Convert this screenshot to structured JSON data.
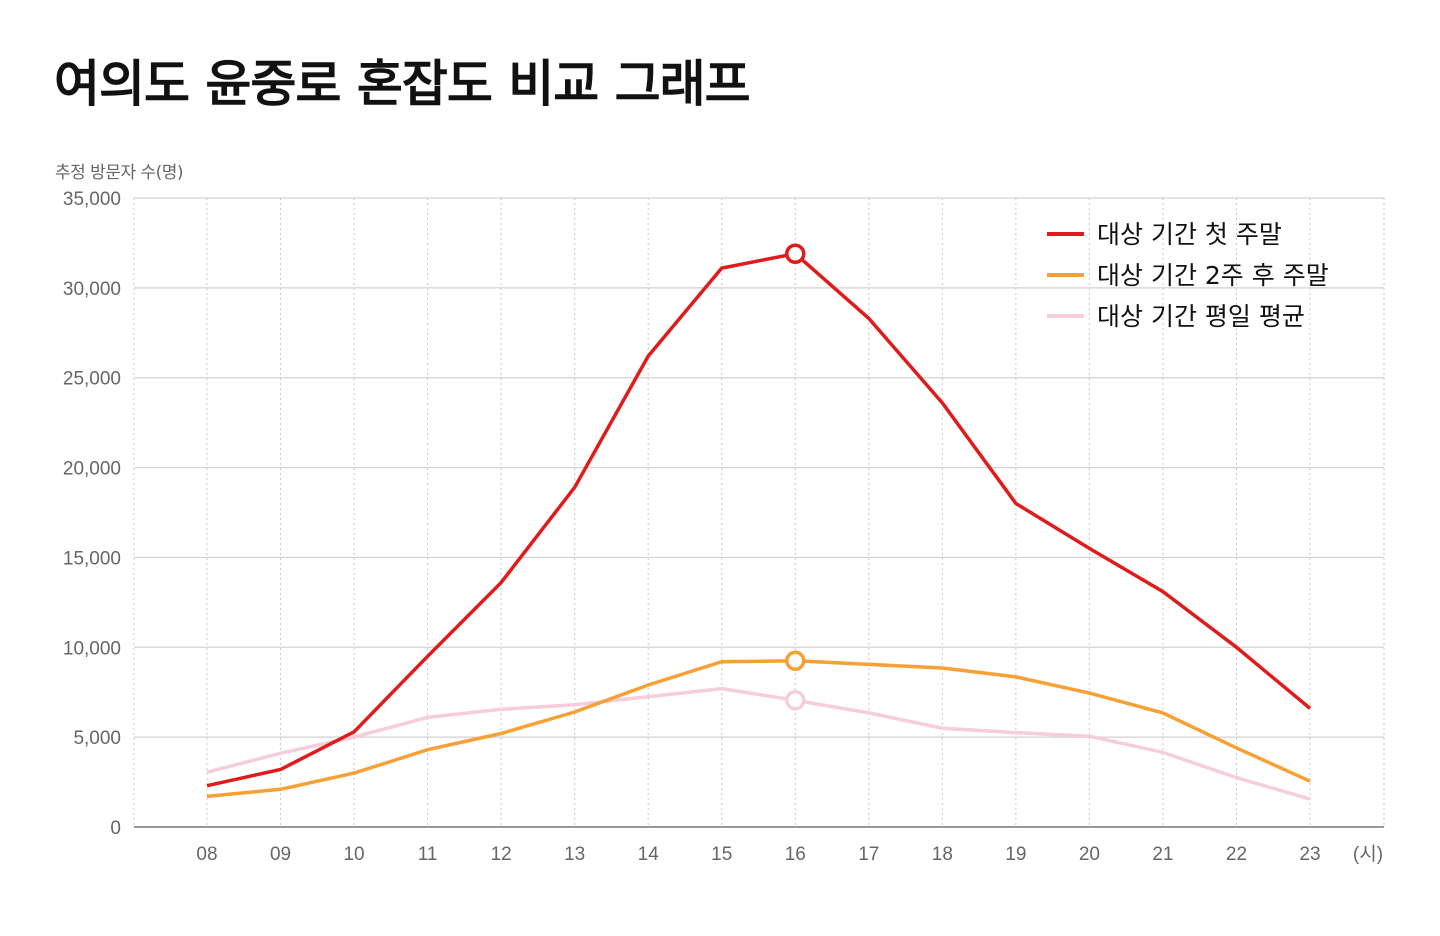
{
  "title": "여의도 윤중로 혼잡도 비교 그래프",
  "y_axis_label": "추정 방문자 수(명)",
  "x_axis_unit": "(시)",
  "chart_data": {
    "type": "line",
    "title": "여의도 윤중로 혼잡도 비교 그래프",
    "xlabel": "(시)",
    "ylabel": "추정 방문자 수(명)",
    "ylim": [
      0,
      35000
    ],
    "yticks": [
      0,
      5000,
      10000,
      15000,
      20000,
      25000,
      30000,
      35000
    ],
    "ytick_labels": [
      "0",
      "5,000",
      "10,000",
      "15,000",
      "20,000",
      "25,000",
      "30,000",
      "35,000"
    ],
    "categories": [
      "08",
      "09",
      "10",
      "11",
      "12",
      "13",
      "14",
      "15",
      "16",
      "17",
      "18",
      "19",
      "20",
      "21",
      "22",
      "23"
    ],
    "grid": {
      "horizontal": "solid",
      "vertical": "dotted"
    },
    "legend_position": "top-right",
    "highlight_category": "16",
    "series": [
      {
        "name": "대상 기간 첫 주말",
        "color": "#e01b1b",
        "values": [
          2300,
          3200,
          5300,
          9500,
          13600,
          18900,
          26200,
          31100,
          31900,
          28300,
          23600,
          18000,
          15500,
          13100,
          10000,
          6600
        ]
      },
      {
        "name": "대상 기간 2주 후 주말",
        "color": "#f7a035",
        "values": [
          1700,
          2100,
          3000,
          4300,
          5200,
          6400,
          7900,
          9200,
          9250,
          9050,
          8850,
          8350,
          7450,
          6350,
          4400,
          2550
        ]
      },
      {
        "name": "대상 기간 평일 평균",
        "color": "#f5cddb",
        "values": [
          3050,
          4100,
          5000,
          6100,
          6550,
          6800,
          7250,
          7700,
          7050,
          6350,
          5500,
          5250,
          5050,
          4150,
          2750,
          1550
        ]
      }
    ]
  }
}
